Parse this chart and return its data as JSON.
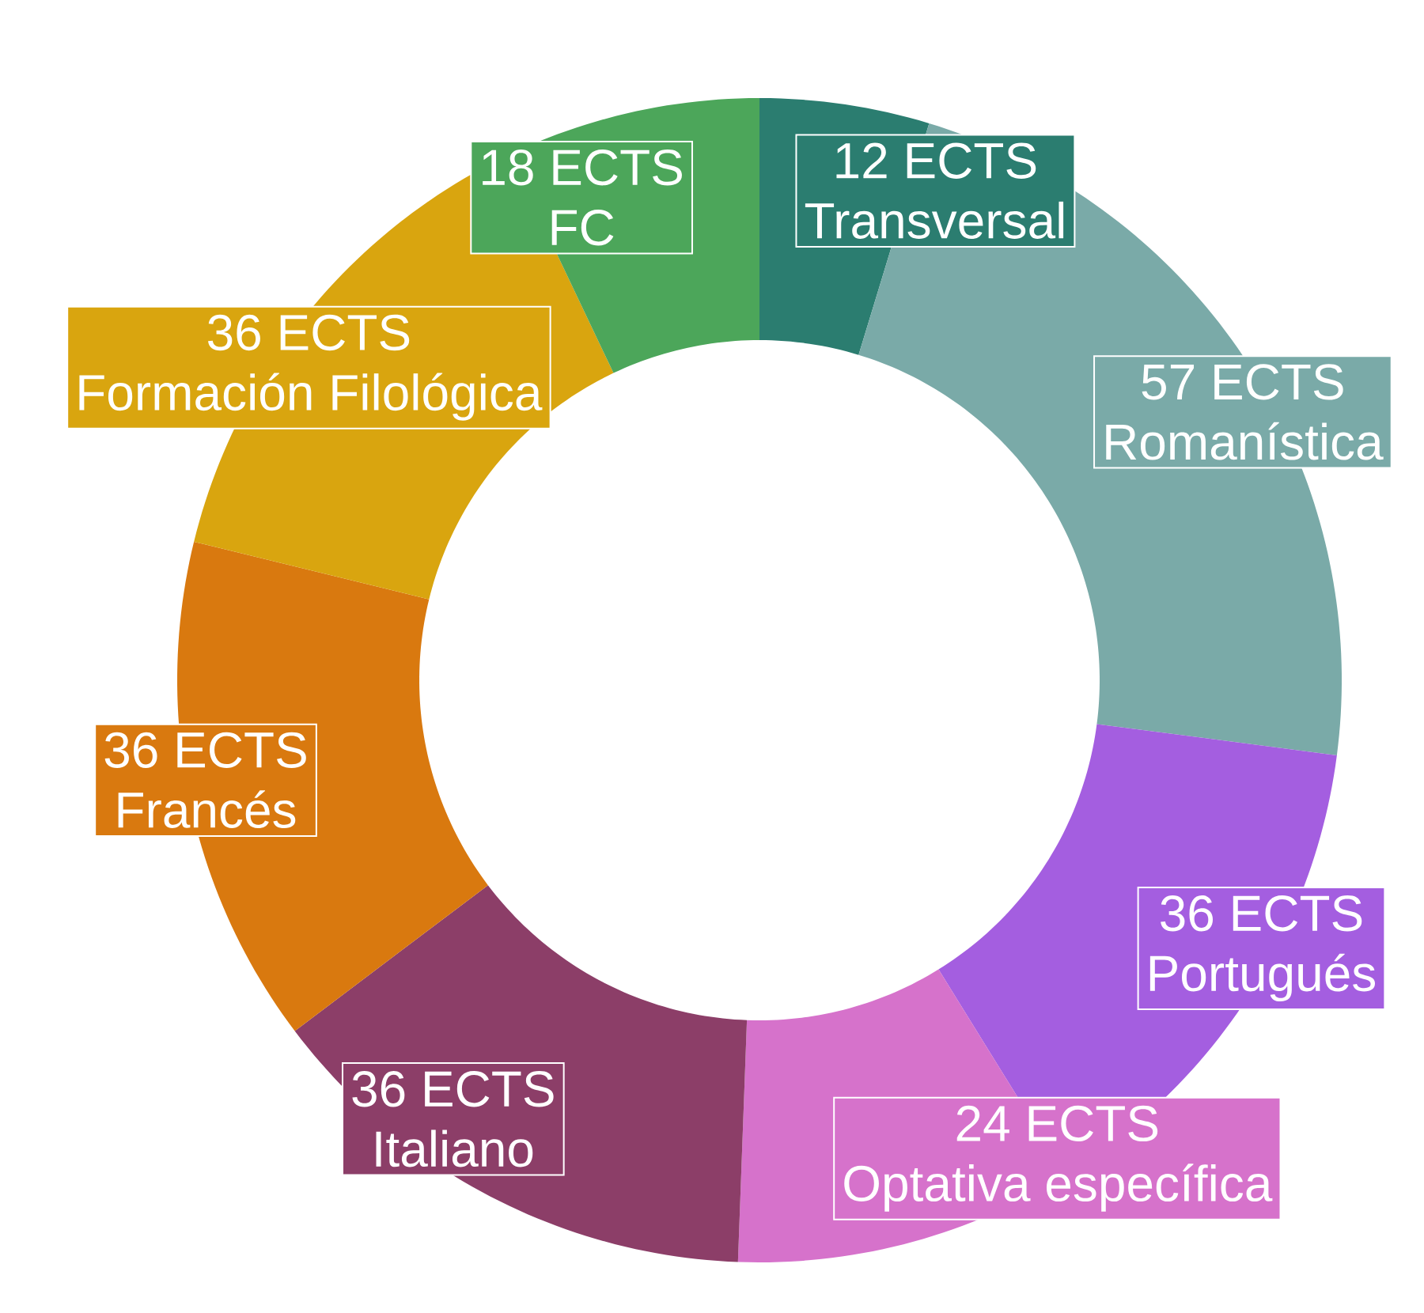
{
  "chart_data": {
    "type": "donut",
    "categories": [
      "Transversal",
      "Romanística",
      "Portugués",
      "Optativa específica",
      "Italiano",
      "Francés",
      "Formación Filológica",
      "FC"
    ],
    "values": [
      12,
      57,
      36,
      24,
      36,
      36,
      36,
      18
    ],
    "value_labels": [
      "12 ECTS",
      "57 ECTS",
      "36 ECTS",
      "24 ECTS",
      "36 ECTS",
      "36 ECTS",
      "36 ECTS",
      "18 ECTS"
    ],
    "colors": [
      "#2b7d70",
      "#7aaaa8",
      "#a45ee0",
      "#d672cb",
      "#8c3e68",
      "#d9790f",
      "#d9a50f",
      "#4ca65a"
    ]
  }
}
